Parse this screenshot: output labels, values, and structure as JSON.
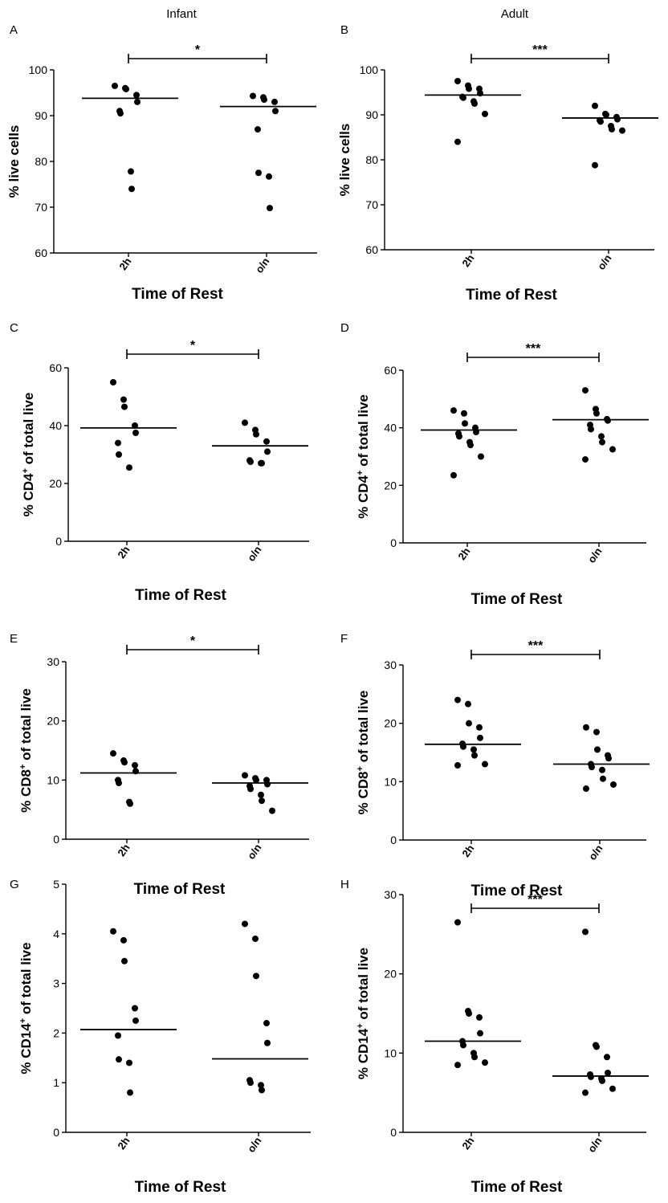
{
  "figure": {
    "col_titles": [
      "Infant",
      "Adult"
    ]
  },
  "chart_data": [
    {
      "type": "scatter",
      "panel": "A",
      "categories": [
        "2h",
        "o/n"
      ],
      "xlabel": "Time of Rest",
      "ylabel": "% live cells",
      "ylabel_sup": "",
      "ylabel_rest": "",
      "ylim": [
        60,
        100
      ],
      "yticks": [
        60,
        70,
        80,
        90,
        100
      ],
      "significance": "*",
      "groups": [
        [
          96.5,
          96.0,
          95.8,
          94.5,
          93.0,
          91.0,
          90.5,
          77.8,
          74.0
        ],
        [
          94.3,
          94.0,
          93.5,
          93.0,
          91.0,
          87.0,
          77.5,
          76.7,
          69.8
        ]
      ],
      "medians": [
        93.8,
        92.0
      ]
    },
    {
      "type": "scatter",
      "panel": "B",
      "categories": [
        "2h",
        "o/n"
      ],
      "xlabel": "Time of Rest",
      "ylabel": "% live cells",
      "ylabel_sup": "",
      "ylabel_rest": "",
      "ylim": [
        60,
        100
      ],
      "yticks": [
        60,
        70,
        80,
        90,
        100
      ],
      "significance": "***",
      "groups": [
        [
          97.5,
          96.5,
          95.8,
          95.8,
          94.8,
          94.0,
          93.8,
          93.0,
          92.5,
          90.2,
          84.0
        ],
        [
          92.0,
          90.2,
          90.0,
          89.5,
          89.0,
          88.8,
          88.5,
          87.5,
          86.8,
          86.5,
          78.8
        ]
      ],
      "medians": [
        94.4,
        89.3
      ]
    },
    {
      "type": "scatter",
      "panel": "C",
      "categories": [
        "2h",
        "o/n"
      ],
      "xlabel": "Time of Rest",
      "ylabel": "% CD4",
      "ylabel_sup": "+",
      "ylabel_rest": " of total live",
      "ylim": [
        0,
        60
      ],
      "yticks": [
        0,
        20,
        40,
        60
      ],
      "significance": "*",
      "groups": [
        [
          55.0,
          49.0,
          46.5,
          40.0,
          37.5,
          34.0,
          30.0,
          25.5
        ],
        [
          41.0,
          38.5,
          37.0,
          34.5,
          31.0,
          28.0,
          27.5,
          27.0,
          27.0
        ]
      ],
      "medians": [
        39.2,
        33.0
      ]
    },
    {
      "type": "scatter",
      "panel": "D",
      "categories": [
        "2h",
        "o/n"
      ],
      "xlabel": "Time of Rest",
      "ylabel": "% CD4",
      "ylabel_sup": "+",
      "ylabel_rest": " of total live",
      "ylim": [
        0,
        60
      ],
      "yticks": [
        0,
        20,
        40,
        60
      ],
      "significance": "***",
      "groups": [
        [
          46.0,
          45.0,
          41.5,
          40.0,
          38.5,
          38.0,
          37.0,
          35.0,
          34.0,
          30.0,
          23.5
        ],
        [
          53.0,
          46.5,
          45.0,
          43.0,
          42.5,
          41.0,
          39.5,
          37.0,
          35.0,
          32.5,
          29.0
        ]
      ],
      "medians": [
        39.2,
        42.8
      ]
    },
    {
      "type": "scatter",
      "panel": "E",
      "categories": [
        "2h",
        "o/n"
      ],
      "xlabel": "Time of Rest",
      "ylabel": "% CD8",
      "ylabel_sup": "+",
      "ylabel_rest": " of total live",
      "ylim": [
        0,
        30
      ],
      "yticks": [
        0,
        10,
        20,
        30
      ],
      "significance": "*",
      "groups": [
        [
          14.5,
          13.3,
          13.0,
          12.5,
          11.5,
          10.0,
          9.5,
          6.3,
          6.0
        ],
        [
          10.8,
          10.3,
          10.0,
          10.0,
          9.3,
          9.0,
          8.5,
          7.5,
          6.5,
          4.8
        ]
      ],
      "medians": [
        11.2,
        9.5
      ]
    },
    {
      "type": "scatter",
      "panel": "F",
      "categories": [
        "2h",
        "o/n"
      ],
      "xlabel": "Time of Rest",
      "ylabel": "% CD8",
      "ylabel_sup": "+",
      "ylabel_rest": " of total live",
      "ylim": [
        0,
        30
      ],
      "yticks": [
        0,
        10,
        20,
        30
      ],
      "significance": "***",
      "groups": [
        [
          24.0,
          23.3,
          20.0,
          19.3,
          17.5,
          16.5,
          16.0,
          15.5,
          14.5,
          13.0,
          12.8
        ],
        [
          19.3,
          18.5,
          15.5,
          14.5,
          14.0,
          13.0,
          12.5,
          12.0,
          10.5,
          9.5,
          8.8
        ]
      ],
      "medians": [
        16.4,
        13.0
      ]
    },
    {
      "type": "scatter",
      "panel": "G",
      "categories": [
        "2h",
        "o/n"
      ],
      "xlabel": "Time of Rest",
      "ylabel": "% CD14",
      "ylabel_sup": "+",
      "ylabel_rest": " of total live",
      "ylim": [
        0,
        5
      ],
      "yticks": [
        0,
        1,
        2,
        3,
        4,
        5
      ],
      "significance": "",
      "groups": [
        [
          4.05,
          3.87,
          3.45,
          2.5,
          2.25,
          1.95,
          1.47,
          1.4,
          0.8
        ],
        [
          4.2,
          3.9,
          3.15,
          2.2,
          1.8,
          1.05,
          1.0,
          0.95,
          0.85
        ]
      ],
      "medians": [
        2.07,
        1.48
      ]
    },
    {
      "type": "scatter",
      "panel": "H",
      "categories": [
        "2h",
        "o/n"
      ],
      "xlabel": "Time of Rest",
      "ylabel": "% CD14",
      "ylabel_sup": "+",
      "ylabel_rest": " of total live",
      "ylim": [
        0,
        30
      ],
      "yticks": [
        0,
        10,
        20,
        30
      ],
      "significance": "***",
      "groups": [
        [
          26.5,
          15.3,
          15.0,
          14.5,
          12.5,
          11.5,
          11.0,
          10.0,
          9.5,
          8.8,
          8.5
        ],
        [
          25.3,
          11.0,
          10.8,
          9.5,
          7.5,
          7.3,
          7.0,
          6.8,
          6.5,
          5.5,
          5.0
        ]
      ],
      "medians": [
        11.5,
        7.1
      ]
    }
  ]
}
